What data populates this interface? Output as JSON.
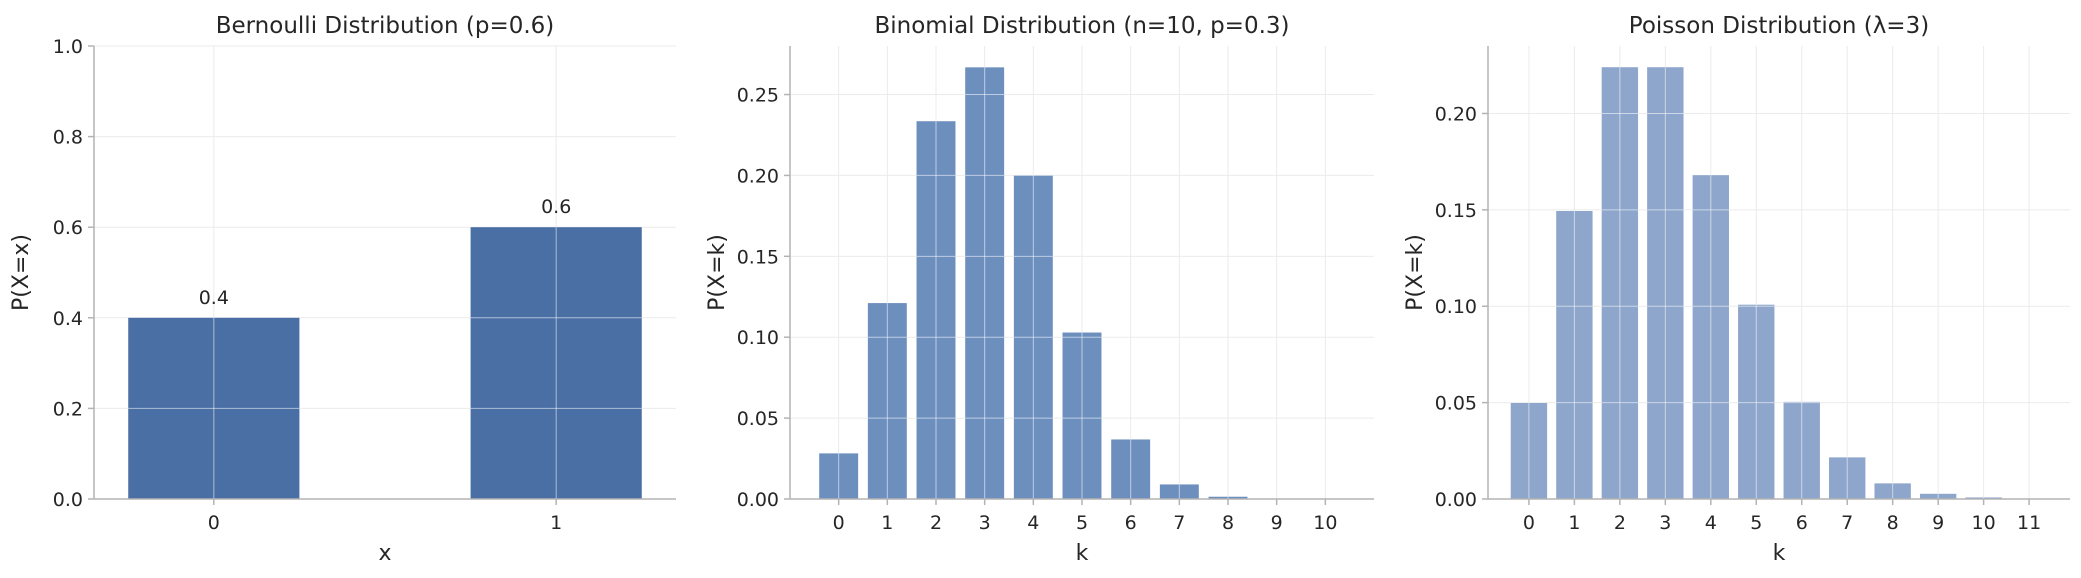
{
  "chart_data": [
    {
      "type": "bar",
      "title": "Bernoulli Distribution (p=0.6)",
      "xlabel": "x",
      "ylabel": "P(X=x)",
      "categories": [
        "0",
        "1"
      ],
      "values": [
        0.4,
        0.6
      ],
      "data_labels": [
        "0.4",
        "0.6"
      ],
      "ylim": [
        0,
        1.0
      ],
      "yticks": [
        "0.0",
        "0.2",
        "0.4",
        "0.6",
        "0.8",
        "1.0"
      ],
      "color": "#4a6fa5",
      "grid": true
    },
    {
      "type": "bar",
      "title": "Binomial Distribution (n=10, p=0.3)",
      "xlabel": "k",
      "ylabel": "P(X=k)",
      "categories": [
        "0",
        "1",
        "2",
        "3",
        "4",
        "5",
        "6",
        "7",
        "8",
        "9",
        "10"
      ],
      "values": [
        0.0282,
        0.1211,
        0.2335,
        0.2668,
        0.2001,
        0.1029,
        0.0368,
        0.009,
        0.0014,
        0.0001,
        0.0
      ],
      "ylim": [
        0,
        0.28
      ],
      "yticks": [
        "0.00",
        "0.05",
        "0.10",
        "0.15",
        "0.20",
        "0.25"
      ],
      "color": "#6d8fbe",
      "grid": true
    },
    {
      "type": "bar",
      "title": "Poisson Distribution (λ=3)",
      "xlabel": "k",
      "ylabel": "P(X=k)",
      "categories": [
        "0",
        "1",
        "2",
        "3",
        "4",
        "5",
        "6",
        "7",
        "8",
        "9",
        "10",
        "11"
      ],
      "values": [
        0.0498,
        0.1494,
        0.224,
        0.224,
        0.168,
        0.1008,
        0.0504,
        0.0216,
        0.0081,
        0.0027,
        0.0008,
        0.0002
      ],
      "ylim": [
        0,
        0.235
      ],
      "yticks": [
        "0.00",
        "0.05",
        "0.10",
        "0.15",
        "0.20"
      ],
      "color": "#8ea6cb",
      "grid": true
    }
  ]
}
